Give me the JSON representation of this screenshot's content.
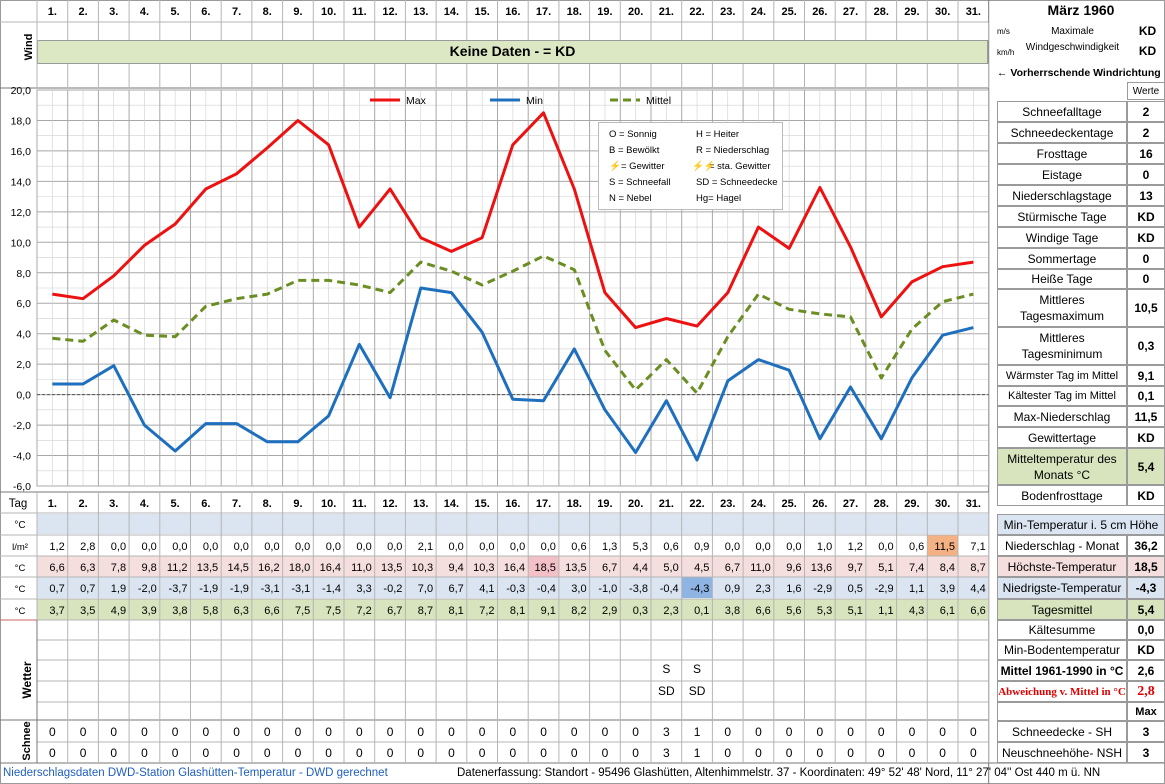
{
  "title": "März 1960",
  "days": [
    "1.",
    "2.",
    "3.",
    "4.",
    "5.",
    "6.",
    "7.",
    "8.",
    "9.",
    "10.",
    "11.",
    "12.",
    "13.",
    "14.",
    "15.",
    "16.",
    "17.",
    "18.",
    "19.",
    "20.",
    "21.",
    "22.",
    "23.",
    "24.",
    "25.",
    "26.",
    "27.",
    "28.",
    "29.",
    "30.",
    "31."
  ],
  "wind": {
    "label": "Wind",
    "banner": "Keine Daten -  = KD",
    "unit_ms": "m/s",
    "unit_kmh": "km/h",
    "max_label": "Maximale Windgeschwindigkeit",
    "max_ms": "KD",
    "max_kmh": "KD",
    "direction_label": "← Vorherrschende Windrichtung"
  },
  "legend_symbols": [
    [
      "O = Sonnig",
      "H = Heiter"
    ],
    [
      "B = Bewölkt",
      "R = Niederschlag"
    ],
    [
      "= Gewitter",
      "= sta. Gewitter"
    ],
    [
      "S = Schneefall",
      "SD = Schneedecke"
    ],
    [
      "N = Nebel",
      "Hg= Hagel"
    ]
  ],
  "colors": {
    "max": "#ee1111",
    "min": "#1f6fbf",
    "mittel": "#6b8e23",
    "grid": "#b5b5b5",
    "green_band": "#dce8c3",
    "blue_band": "#dbe5f1",
    "red_band": "#f5dede",
    "mittel_band": "#d7e4bd",
    "highlight_orange": "#f4b183",
    "highlight_pink": "#f4c0c8",
    "highlight_blue": "#8eb4e3"
  },
  "chart_data": {
    "type": "line",
    "x": [
      1,
      2,
      3,
      4,
      5,
      6,
      7,
      8,
      9,
      10,
      11,
      12,
      13,
      14,
      15,
      16,
      17,
      18,
      19,
      20,
      21,
      22,
      23,
      24,
      25,
      26,
      27,
      28,
      29,
      30,
      31
    ],
    "ylim": [
      -6,
      20
    ],
    "yticks": [
      "20,0",
      "18,0",
      "16,0",
      "14,0",
      "12,0",
      "10,0",
      "8,0",
      "6,0",
      "4,0",
      "2,0",
      "0,0",
      "-2,0",
      "-4,0",
      "-6,0"
    ],
    "series": [
      {
        "name": "Max",
        "values": [
          6.6,
          6.3,
          7.8,
          9.8,
          11.2,
          13.5,
          14.5,
          16.2,
          18.0,
          16.4,
          11.0,
          13.5,
          10.3,
          9.4,
          10.3,
          16.4,
          18.5,
          13.5,
          6.7,
          4.4,
          5.0,
          4.5,
          6.7,
          11.0,
          9.6,
          13.6,
          9.7,
          5.1,
          7.4,
          8.4,
          8.7
        ]
      },
      {
        "name": "Min",
        "values": [
          0.7,
          0.7,
          1.9,
          -2.0,
          -3.7,
          -1.9,
          -1.9,
          -3.1,
          -3.1,
          -1.4,
          3.3,
          -0.2,
          7.0,
          6.7,
          4.1,
          -0.3,
          -0.4,
          3.0,
          -1.0,
          -3.8,
          -0.4,
          -4.3,
          0.9,
          2.3,
          1.6,
          -2.9,
          0.5,
          -2.9,
          1.1,
          3.9,
          4.4
        ]
      },
      {
        "name": "Mittel",
        "values": [
          3.7,
          3.5,
          4.9,
          3.9,
          3.8,
          5.8,
          6.3,
          6.6,
          7.5,
          7.5,
          7.2,
          6.7,
          8.7,
          8.1,
          7.2,
          8.1,
          9.1,
          8.2,
          2.9,
          0.3,
          2.3,
          0.1,
          3.8,
          6.6,
          5.6,
          5.3,
          5.1,
          1.1,
          4.3,
          6.1,
          6.6
        ]
      }
    ]
  },
  "table": {
    "tag_label": "Tag",
    "unit_c": "°C",
    "unit_lm2": "l/m²",
    "niederschlag": [
      "1,2",
      "2,8",
      "0,0",
      "0,0",
      "0,0",
      "0,0",
      "0,0",
      "0,0",
      "0,0",
      "0,0",
      "0,0",
      "0,0",
      "2,1",
      "0,0",
      "0,0",
      "0,0",
      "0,0",
      "0,6",
      "1,3",
      "5,3",
      "0,6",
      "0,9",
      "0,0",
      "0,0",
      "0,0",
      "1,0",
      "1,2",
      "0,0",
      "0,6",
      "11,5",
      "7,1"
    ],
    "hoechst": [
      "6,6",
      "6,3",
      "7,8",
      "9,8",
      "11,2",
      "13,5",
      "14,5",
      "16,2",
      "18,0",
      "16,4",
      "11,0",
      "13,5",
      "10,3",
      "9,4",
      "10,3",
      "16,4",
      "18,5",
      "13,5",
      "6,7",
      "4,4",
      "5,0",
      "4,5",
      "6,7",
      "11,0",
      "9,6",
      "13,6",
      "9,7",
      "5,1",
      "7,4",
      "8,4",
      "8,7"
    ],
    "niedrigst": [
      "0,7",
      "0,7",
      "1,9",
      "-2,0",
      "-3,7",
      "-1,9",
      "-1,9",
      "-3,1",
      "-3,1",
      "-1,4",
      "3,3",
      "-0,2",
      "7,0",
      "6,7",
      "4,1",
      "-0,3",
      "-0,4",
      "3,0",
      "-1,0",
      "-3,8",
      "-0,4",
      "-4,3",
      "0,9",
      "2,3",
      "1,6",
      "-2,9",
      "0,5",
      "-2,9",
      "1,1",
      "3,9",
      "4,4"
    ],
    "mittel": [
      "3,7",
      "3,5",
      "4,9",
      "3,9",
      "3,8",
      "5,8",
      "6,3",
      "6,6",
      "7,5",
      "7,5",
      "7,2",
      "6,7",
      "8,7",
      "8,1",
      "7,2",
      "8,1",
      "9,1",
      "8,2",
      "2,9",
      "0,3",
      "2,3",
      "0,1",
      "3,8",
      "6,6",
      "5,6",
      "5,3",
      "5,1",
      "1,1",
      "4,3",
      "6,1",
      "6,6"
    ],
    "wetter_label": "Wetter",
    "wetter_row1": [
      "",
      "",
      "",
      "",
      "",
      "",
      "",
      "",
      "",
      "",
      "",
      "",
      "",
      "",
      "",
      "",
      "",
      "",
      "",
      "",
      "S",
      "S",
      "",
      "",
      "",
      "",
      "",
      "",
      "",
      "",
      ""
    ],
    "wetter_row2": [
      "",
      "",
      "",
      "",
      "",
      "",
      "",
      "",
      "",
      "",
      "",
      "",
      "",
      "",
      "",
      "",
      "",
      "",
      "",
      "",
      "SD",
      "SD",
      "",
      "",
      "",
      "",
      "",
      "",
      "",
      "",
      ""
    ],
    "schnee_label": "Schnee",
    "schnee_sh": [
      "0",
      "0",
      "0",
      "0",
      "0",
      "0",
      "0",
      "0",
      "0",
      "0",
      "0",
      "0",
      "0",
      "0",
      "0",
      "0",
      "0",
      "0",
      "0",
      "0",
      "3",
      "1",
      "0",
      "0",
      "0",
      "0",
      "0",
      "0",
      "0",
      "0",
      "0"
    ],
    "schnee_nsh": [
      "0",
      "0",
      "0",
      "0",
      "0",
      "0",
      "0",
      "0",
      "0",
      "0",
      "0",
      "0",
      "0",
      "0",
      "0",
      "0",
      "0",
      "0",
      "0",
      "0",
      "3",
      "1",
      "0",
      "0",
      "0",
      "0",
      "0",
      "0",
      "0",
      "0",
      "0"
    ]
  },
  "stats": {
    "werte_label": "Werte",
    "items": [
      {
        "label": "Schneefalltage",
        "value": "2"
      },
      {
        "label": "Schneedeckentage",
        "value": "2"
      },
      {
        "label": "Frosttage",
        "value": "16"
      },
      {
        "label": "Eistage",
        "value": "0"
      },
      {
        "label": "Niederschlagstage",
        "value": "13"
      },
      {
        "label": "Stürmische Tage",
        "value": "KD"
      },
      {
        "label": "Windige Tage",
        "value": "KD"
      },
      {
        "label": "Sommertage",
        "value": "0"
      },
      {
        "label": "Heiße Tage",
        "value": "0"
      },
      {
        "label": "Mittleres Tagesmaximum",
        "value": "10,5"
      },
      {
        "label": "Mittleres Tagesminimum",
        "value": "0,3"
      },
      {
        "label": "Wärmster Tag im Mittel",
        "value": "9,1"
      },
      {
        "label": "Kältester Tag im Mittel",
        "value": "0,1"
      },
      {
        "label": "Max-Niederschlag",
        "value": "11,5"
      },
      {
        "label": "Gewittertage",
        "value": "KD"
      },
      {
        "label": "Mitteltemperatur des Monats °C",
        "value": "5,4"
      },
      {
        "label": "Bodenfrosttage",
        "value": "KD"
      }
    ],
    "lower": [
      {
        "label": "Min-Temperatur i. 5 cm Höhe",
        "value": ""
      },
      {
        "label": "Niederschlag - Monat",
        "value": "36,2"
      },
      {
        "label": "Höchste-Temperatur",
        "value": "18,5"
      },
      {
        "label": "Niedrigste-Temperatur",
        "value": "-4,3"
      },
      {
        "label": "Tagesmittel",
        "value": "5,4"
      },
      {
        "label": "Kältesumme",
        "value": "0,0"
      },
      {
        "label": "Min-Bodentemperatur",
        "value": "KD"
      },
      {
        "label": "Mittel 1961-1990 in °C",
        "value": "2,6"
      },
      {
        "label": "Abweichung v. Mittel in °C",
        "value": "2,8"
      },
      {
        "label": "",
        "value": "Max"
      },
      {
        "label": "Schneedecke -  SH",
        "value": "3"
      },
      {
        "label": "Neuschneehöhe- NSH",
        "value": "3"
      }
    ]
  },
  "footer": {
    "left": "Niederschlagsdaten DWD-Station Glashütten-Temperatur -  DWD gerechnet",
    "right": "Datenerfassung: Standort -  95496  Glashütten, Altenhimmelstr. 37 - Koordinaten:  49° 52' 48' Nord,   11° 27' 04'' Ost   440 m ü. NN"
  }
}
